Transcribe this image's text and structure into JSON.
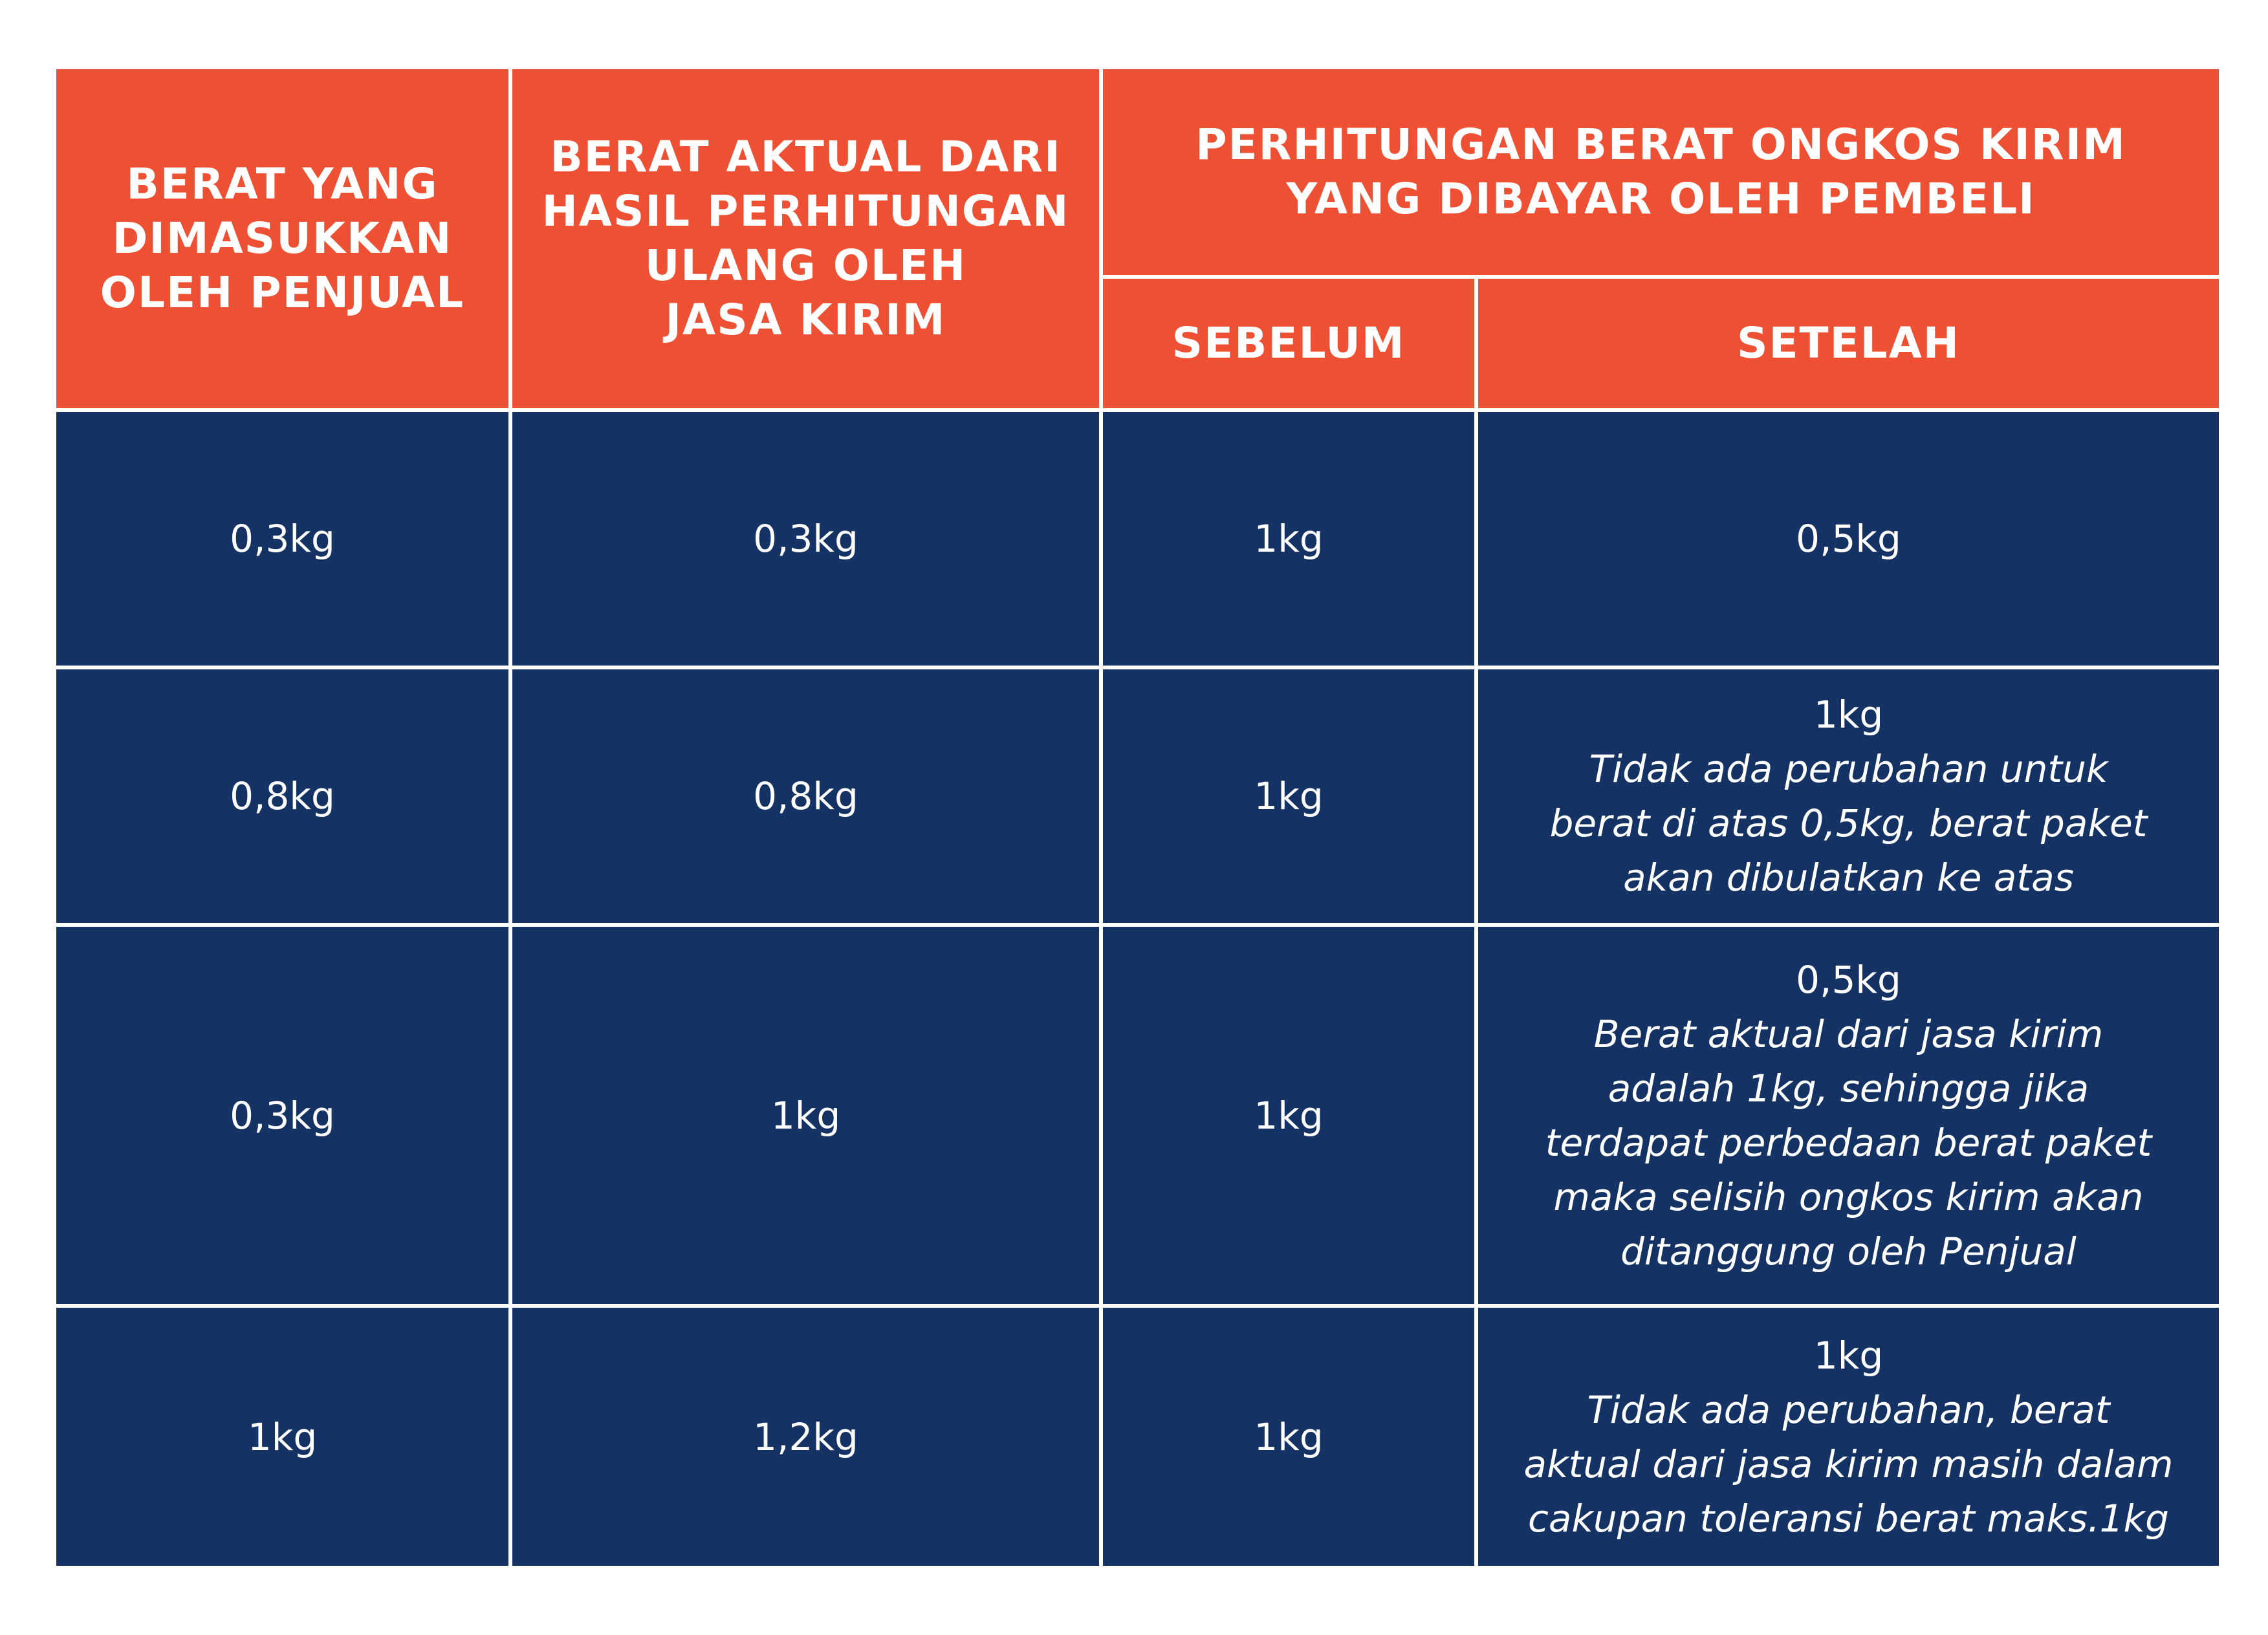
{
  "table": {
    "headers": {
      "col1": "BERAT YANG\nDIMASUKKAN\nOLEH PENJUAL",
      "col2": "BERAT AKTUAL DARI\nHASIL PERHITUNGAN\nULANG OLEH\nJASA KIRIM",
      "group": "PERHITUNGAN BERAT ONGKOS KIRIM\nYANG DIBAYAR OLEH PEMBELI",
      "sebelum": "SEBELUM",
      "setelah": "SETELAH"
    },
    "rows": [
      {
        "berat_penjual": "0,3kg",
        "berat_aktual": "0,3kg",
        "sebelum": "1kg",
        "setelah_value": "0,5kg",
        "setelah_note": ""
      },
      {
        "berat_penjual": "0,8kg",
        "berat_aktual": "0,8kg",
        "sebelum": "1kg",
        "setelah_value": "1kg",
        "setelah_note": "Tidak ada perubahan untuk\nberat di atas 0,5kg, berat paket\nakan dibulatkan ke atas"
      },
      {
        "berat_penjual": "0,3kg",
        "berat_aktual": "1kg",
        "sebelum": "1kg",
        "setelah_value": "0,5kg",
        "setelah_note": "Berat aktual dari jasa kirim\nadalah 1kg, sehingga jika\nterdapat perbedaan berat paket\nmaka selisih ongkos kirim akan\nditanggung oleh Penjual"
      },
      {
        "berat_penjual": "1kg",
        "berat_aktual": "1,2kg",
        "sebelum": "1kg",
        "setelah_value": "1kg",
        "setelah_note": "Tidak ada perubahan, berat\naktual dari jasa kirim masih dalam\ncakupan toleransi berat maks.1kg"
      }
    ]
  },
  "colors": {
    "header": "#ee5033",
    "body": "#143264",
    "text": "#ffffff"
  }
}
